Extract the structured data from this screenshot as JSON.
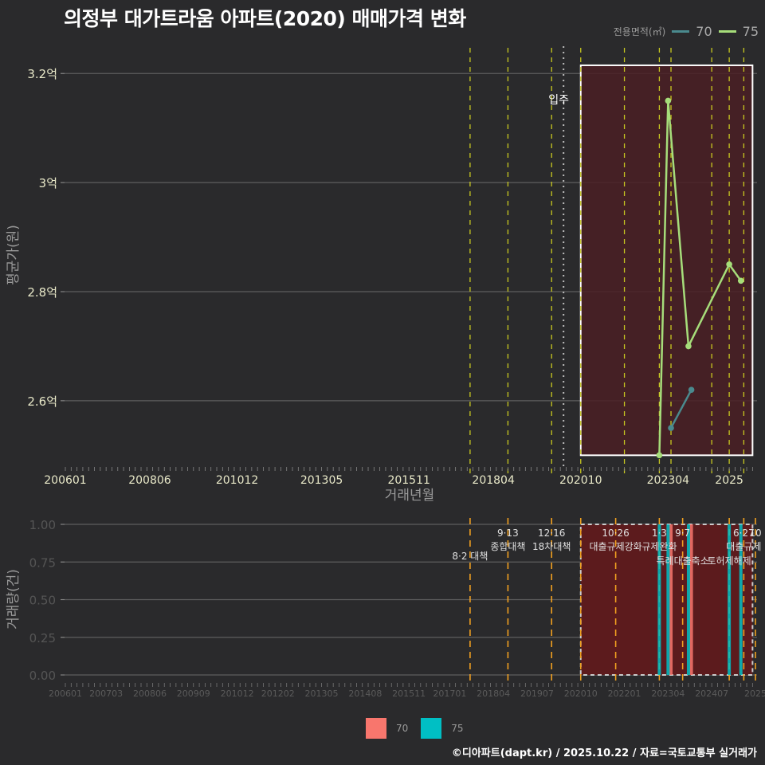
{
  "title": "의정부 대가트라움 아파트(2020) 매매가격 변화",
  "legend_top": {
    "title": "전용면적(㎡)",
    "items": [
      {
        "label": "70",
        "color": "#4a8a8e"
      },
      {
        "label": "75",
        "color": "#a6dd7a"
      }
    ]
  },
  "legend_bottom": {
    "items": [
      {
        "label": "70",
        "color": "#f8766d"
      },
      {
        "label": "75",
        "color": "#00bfc4"
      }
    ]
  },
  "footer": "©디아파트(dapt.kr) / 2025.10.22 / 자료=국토교통부 실거래가",
  "chart_data": [
    {
      "type": "line",
      "title": "의정부 대가트라움 아파트(2020) 매매가격 변화",
      "xlabel": "거래년월",
      "ylabel": "평균가(원)",
      "x_tick_labels": [
        "200601",
        "200806",
        "201012",
        "201305",
        "201511",
        "201804",
        "202010",
        "202304",
        "2025"
      ],
      "y_tick_labels": [
        "2.6억",
        "2.8억",
        "3억",
        "3.2억"
      ],
      "y_ticks": [
        2.6,
        2.8,
        3.0,
        3.2
      ],
      "ylim": [
        2.48,
        3.25
      ],
      "xlim": [
        "200601",
        "202510"
      ],
      "grid": true,
      "legend_position": "top-right",
      "annotation": "입주",
      "annotation_x": "202003",
      "highlight_box": {
        "x0": "202010",
        "x1": "202509",
        "y0": 2.5,
        "y1": 3.215
      },
      "series": [
        {
          "name": "70",
          "color": "#4a8a8e",
          "points": [
            {
              "x": "202305",
              "y": 2.55
            },
            {
              "x": "202312",
              "y": 2.62
            }
          ]
        },
        {
          "name": "75",
          "color": "#a6dd7a",
          "points": [
            {
              "x": "202301",
              "y": 2.5
            },
            {
              "x": "202304",
              "y": 3.15
            },
            {
              "x": "202311",
              "y": 2.7
            },
            {
              "x": "202501",
              "y": 2.85
            },
            {
              "x": "202505",
              "y": 2.82
            }
          ]
        }
      ],
      "policy_lines": [
        "201708",
        "201809",
        "201912",
        "202010",
        "202201",
        "202301",
        "202305",
        "202407",
        "202501",
        "202506"
      ]
    },
    {
      "type": "bar",
      "title": "",
      "xlabel": "",
      "ylabel": "거래량(건)",
      "x_tick_labels": [
        "200601",
        "200703",
        "200806",
        "200909",
        "201012",
        "201202",
        "201305",
        "201408",
        "201511",
        "201701",
        "201804",
        "201907",
        "202010",
        "202201",
        "202304",
        "202407",
        "2025"
      ],
      "y_tick_labels": [
        "0.00",
        "0.25",
        "0.50",
        "0.75",
        "1.00"
      ],
      "ylim": [
        0,
        1
      ],
      "grid": true,
      "legend_position": "bottom",
      "highlight_box": {
        "x0": "202010",
        "x1": "202509",
        "y0": 0,
        "y1": 1
      },
      "series": [
        {
          "name": "70",
          "color": "#f8766d",
          "points": [
            {
              "x": "202305",
              "y": 1
            },
            {
              "x": "202312",
              "y": 1
            }
          ]
        },
        {
          "name": "75",
          "color": "#00bfc4",
          "points": [
            {
              "x": "202301",
              "y": 1
            },
            {
              "x": "202304",
              "y": 1
            },
            {
              "x": "202311",
              "y": 1
            },
            {
              "x": "202501",
              "y": 1
            },
            {
              "x": "202505",
              "y": 1
            }
          ]
        }
      ],
      "policy_annotations": [
        {
          "x": "201708",
          "line1": "",
          "line2": "8·2 대책"
        },
        {
          "x": "201809",
          "line1": "9·13",
          "line2": "종합대책"
        },
        {
          "x": "201912",
          "line1": "12·16",
          "line2": "18차대책"
        },
        {
          "x": "202010",
          "line1": "",
          "line2": ""
        },
        {
          "x": "202110",
          "line1": "10·26",
          "line2": "대출규제강화"
        },
        {
          "x": "202301",
          "line1": "1·3",
          "line2": "규제완화"
        },
        {
          "x": "202309",
          "line1": "9·7",
          "line2": "특례대출축소"
        },
        {
          "x": "202501",
          "line1": "",
          "line2": "토허제해제"
        },
        {
          "x": "202506",
          "line1": "6·27",
          "line2": "대출규제"
        },
        {
          "x": "202510",
          "line1": "10",
          "line2": ""
        }
      ]
    }
  ]
}
